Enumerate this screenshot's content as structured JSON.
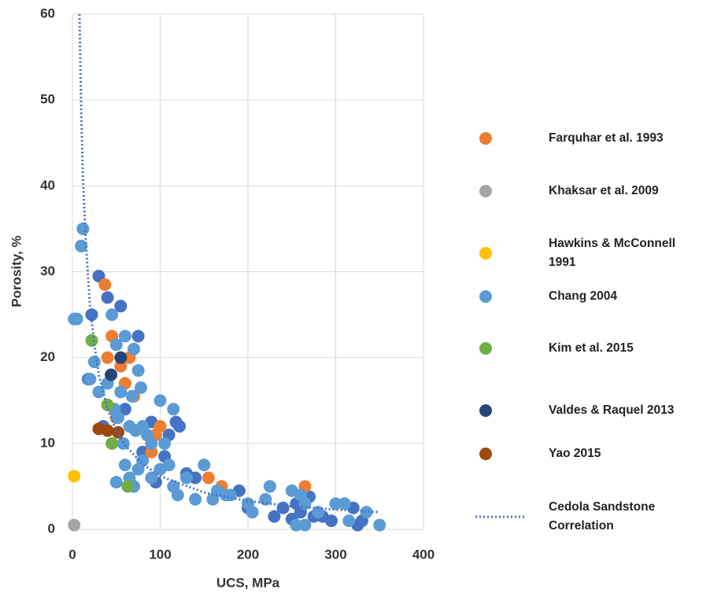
{
  "chart_data": {
    "type": "scatter",
    "x_label": "UCS, MPa",
    "y_label": "Porosity, %",
    "xlim": [
      0,
      400
    ],
    "xticks": [
      0,
      100,
      200,
      300,
      400
    ],
    "ylim": [
      0,
      60
    ],
    "yticks": [
      0,
      10,
      20,
      30,
      40,
      50,
      60
    ],
    "grid": true,
    "legend": "right",
    "series": [
      {
        "color": "#4472c4",
        "x": [
          10,
          30,
          40,
          55,
          22,
          18,
          35,
          60,
          75,
          80,
          90,
          95,
          105,
          110,
          118,
          122,
          130,
          140,
          190,
          200,
          230,
          240,
          250,
          255,
          260,
          270,
          285,
          295,
          320,
          325,
          330,
          275
        ],
        "values": [
          33,
          29.5,
          27,
          26,
          25,
          17.5,
          12,
          14,
          22.5,
          9,
          12.5,
          5.5,
          8.5,
          11,
          12.5,
          12,
          6.5,
          6,
          4.5,
          2.5,
          1.5,
          2.5,
          1.2,
          3,
          2,
          3.8,
          1.5,
          1,
          2.5,
          0.5,
          1,
          1.5
        ]
      },
      {
        "name": "Farquhar et al. 1993",
        "color": "#ed7d31",
        "x": [
          37,
          45,
          40,
          55,
          65,
          70,
          95,
          100,
          90,
          155,
          170,
          265,
          50,
          60
        ],
        "values": [
          28.5,
          22.5,
          20,
          19,
          20,
          15.5,
          11,
          12,
          9,
          6,
          5,
          5,
          13,
          17
        ]
      },
      {
        "name": "Khaksar et al. 2009",
        "color": "#a5a5a5",
        "x": [
          2
        ],
        "values": [
          0.5
        ]
      },
      {
        "name": "Hawkins & McConnell 1991",
        "color": "#ffc000",
        "x": [
          2
        ],
        "values": [
          6.2
        ]
      },
      {
        "name": "Chang 2004",
        "color": "#5b9bd5",
        "x": [
          10,
          12,
          5,
          2,
          45,
          25,
          20,
          30,
          40,
          50,
          60,
          70,
          75,
          78,
          68,
          55,
          48,
          52,
          58,
          65,
          72,
          80,
          85,
          90,
          100,
          105,
          115,
          60,
          65,
          70,
          75,
          80,
          90,
          100,
          110,
          115,
          120,
          50,
          140,
          150,
          160,
          165,
          175,
          200,
          205,
          225,
          250,
          260,
          265,
          255,
          265,
          280,
          300,
          310,
          315,
          335,
          350,
          220,
          180,
          130
        ],
        "values": [
          33,
          35,
          24.5,
          24.5,
          25,
          19.5,
          17.5,
          16,
          17,
          21.5,
          22.5,
          21,
          18.5,
          16.5,
          15.5,
          16,
          14,
          13,
          10,
          12,
          11.5,
          12,
          11,
          10,
          15,
          10,
          14,
          7.5,
          6,
          5,
          7,
          8,
          6,
          7,
          7.5,
          5,
          4,
          5.5,
          3.5,
          7.5,
          3.5,
          4.5,
          4,
          3,
          2,
          5,
          4.5,
          4,
          3,
          0.5,
          0.5,
          2,
          3,
          3,
          1,
          2,
          0.5,
          3.5,
          4,
          6
        ]
      },
      {
        "name": "Kim et al. 2015",
        "color": "#70ad47",
        "x": [
          22,
          40,
          45,
          63
        ],
        "values": [
          22,
          14.5,
          10,
          5
        ]
      },
      {
        "name": "Valdes & Raquel 2013",
        "color": "#264478",
        "x": [
          55,
          44
        ],
        "values": [
          20,
          18
        ]
      },
      {
        "name": "Yao 2015",
        "color": "#9e480e",
        "x": [
          30,
          40,
          52
        ],
        "values": [
          11.7,
          11.5,
          11.3
        ]
      },
      {
        "name": "Cedola Sandstone Correlation",
        "color": "#4472c4",
        "line": "dotted",
        "x": [
          8,
          10,
          12,
          15,
          20,
          25,
          30,
          40,
          50,
          60,
          80,
          100,
          150,
          200,
          250,
          300,
          350
        ],
        "values": [
          60,
          49,
          41,
          34,
          26,
          21.5,
          18,
          14,
          11.5,
          9.8,
          7.6,
          6.2,
          4.3,
          3.3,
          2.7,
          2.3,
          2.0
        ]
      }
    ]
  }
}
